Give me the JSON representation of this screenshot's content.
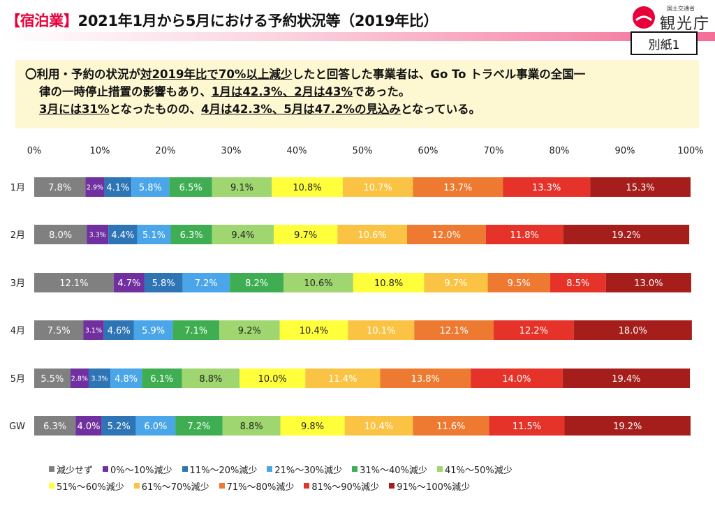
{
  "header": {
    "bracket_open": "【",
    "highlight": "宿泊業",
    "bracket_close": "】",
    "title": "2021年1月から5月における予約状況等（2019年比）",
    "logo_small": "国土交通省",
    "logo_name": "観光庁",
    "badge": "別紙1"
  },
  "summary": {
    "line1_a": "〇利用・予約の状況が",
    "line1_b": "対2019年比で70%以上減少",
    "line1_c": "したと回答した事業者は、Go To トラベル事業の全国一",
    "line2_a": "律の一時停止措置の影響もあり、",
    "line2_b": "1月は42.3%、2月は43%",
    "line2_c": "であった。",
    "line3_a": "3月には31%",
    "line3_b": "となったものの、",
    "line3_c": "4月は42.3%、5月は47.2%の見込み",
    "line3_d": "となっている。"
  },
  "colors": {
    "accent": "#e8003a",
    "summary_bg": "#fdf7d2",
    "segments": [
      "#808080",
      "#7030a0",
      "#2e75b6",
      "#4aa6e8",
      "#3fae52",
      "#9fd66f",
      "#ffff3c",
      "#fbc344",
      "#ee7a31",
      "#e53329",
      "#a51e1b"
    ]
  },
  "chart_data": {
    "type": "bar",
    "orientation": "horizontal-stacked-100",
    "xlim": [
      0,
      100
    ],
    "x_ticks": [
      "0%",
      "10%",
      "20%",
      "30%",
      "40%",
      "50%",
      "60%",
      "70%",
      "80%",
      "90%",
      "100%"
    ],
    "categories": [
      "1月",
      "2月",
      "3月",
      "4月",
      "5月",
      "GW"
    ],
    "legend_position": "bottom",
    "series": [
      {
        "name": "減少せず",
        "values": [
          7.8,
          8.0,
          12.1,
          7.5,
          5.5,
          6.3
        ],
        "labels": [
          "7.8%",
          "8.0%",
          "12.1%",
          "7.5%",
          "5.5%",
          "6.3%"
        ]
      },
      {
        "name": "0%～10%減少",
        "values": [
          2.9,
          3.3,
          4.7,
          3.1,
          2.8,
          4.0
        ],
        "labels": [
          "2.9%",
          "3.3%",
          "4.7%",
          "3.1%",
          "2.8%",
          "4.0%"
        ]
      },
      {
        "name": "11%～20%減少",
        "values": [
          4.1,
          4.4,
          5.8,
          4.6,
          3.3,
          5.2
        ],
        "labels": [
          "4.1%",
          "4.4%",
          "5.8%",
          "4.6%",
          "3.3%",
          "5.2%"
        ]
      },
      {
        "name": "21%～30%減少",
        "values": [
          5.8,
          5.1,
          7.2,
          5.9,
          4.8,
          6.0
        ],
        "labels": [
          "5.8%",
          "5.1%",
          "7.2%",
          "5.9%",
          "4.8%",
          "6.0%"
        ]
      },
      {
        "name": "31%～40%減少",
        "values": [
          6.5,
          6.3,
          8.2,
          7.1,
          6.1,
          7.2
        ],
        "labels": [
          "6.5%",
          "6.3%",
          "8.2%",
          "7.1%",
          "6.1%",
          "7.2%"
        ]
      },
      {
        "name": "41%～50%減少",
        "values": [
          9.1,
          9.4,
          10.6,
          9.2,
          8.8,
          8.8
        ],
        "labels": [
          "9.1%",
          "9.4%",
          "10.6%",
          "9.2%",
          "8.8%",
          "8.8%"
        ]
      },
      {
        "name": "51%～60%減少",
        "values": [
          10.8,
          9.7,
          10.8,
          10.4,
          10.0,
          9.8
        ],
        "labels": [
          "10.8%",
          "9.7%",
          "10.8%",
          "10.4%",
          "10.0%",
          "9.8%"
        ]
      },
      {
        "name": "61%～70%減少",
        "values": [
          10.7,
          10.6,
          9.7,
          10.1,
          11.4,
          10.4
        ],
        "labels": [
          "10.7%",
          "10.6%",
          "9.7%",
          "10.1%",
          "11.4%",
          "10.4%"
        ]
      },
      {
        "name": "71%～80%減少",
        "values": [
          13.7,
          12.0,
          9.5,
          12.1,
          13.8,
          11.6
        ],
        "labels": [
          "13.7%",
          "12.0%",
          "9.5%",
          "12.1%",
          "13.8%",
          "11.6%"
        ]
      },
      {
        "name": "81%～90%減少",
        "values": [
          13.3,
          11.8,
          8.5,
          12.2,
          14.0,
          11.5
        ],
        "labels": [
          "13.3%",
          "11.8%",
          "8.5%",
          "12.2%",
          "14.0%",
          "11.5%"
        ]
      },
      {
        "name": "91%～100%減少",
        "values": [
          15.3,
          19.2,
          13.0,
          18.0,
          19.4,
          19.2
        ],
        "labels": [
          "15.3%",
          "19.2%",
          "13.0%",
          "18.0%",
          "19.4%",
          "19.2%"
        ]
      }
    ]
  }
}
